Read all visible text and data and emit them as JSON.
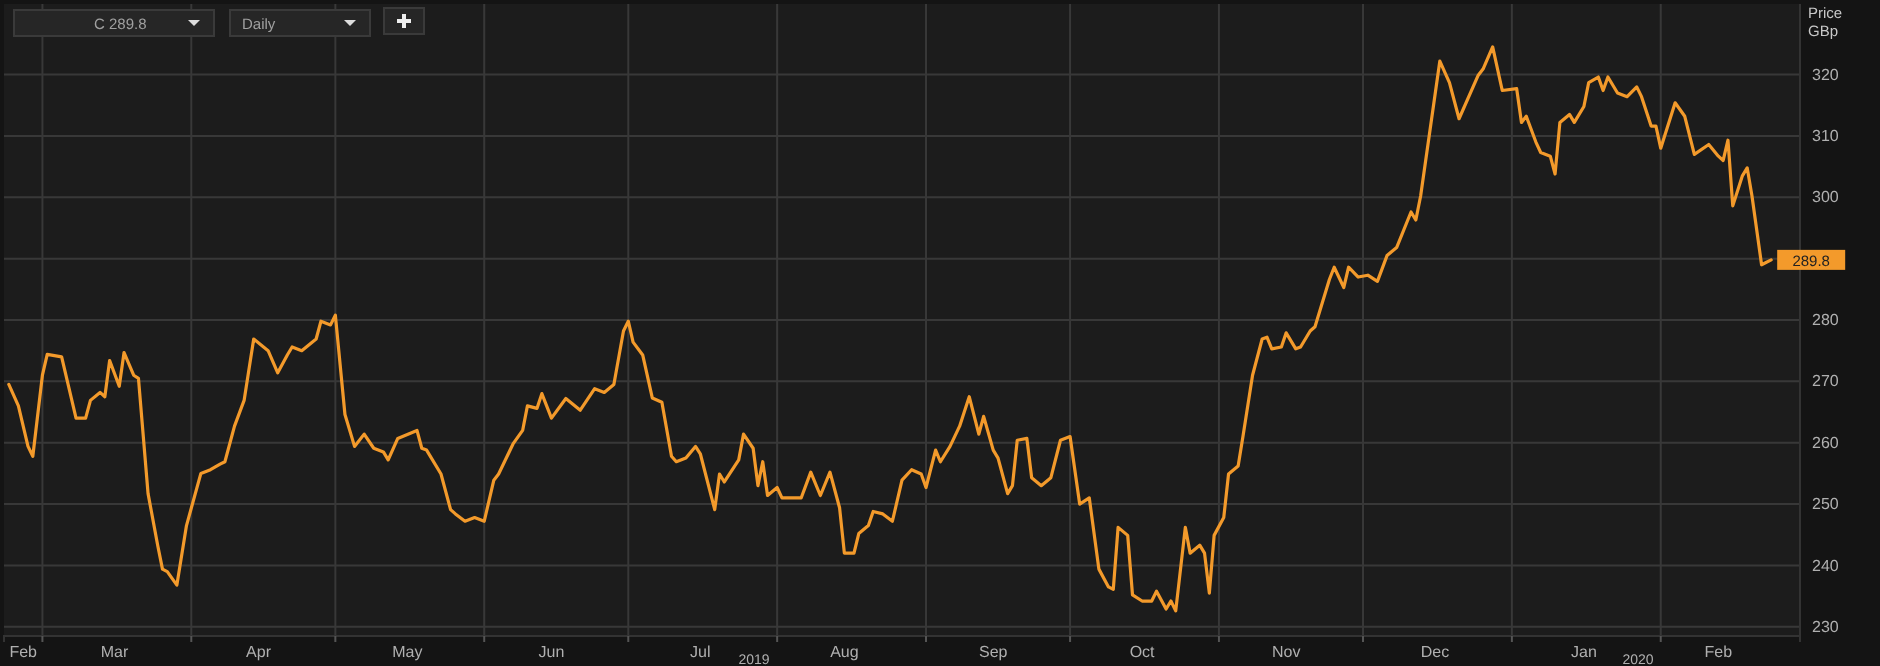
{
  "chart_data": {
    "type": "line",
    "ylabel": "Price GBp",
    "xlim": [
      "2019-02-21",
      "2020-03-01"
    ],
    "ylim": [
      228.5,
      331.5
    ],
    "yticks": [
      230,
      240,
      250,
      260,
      270,
      280,
      {
        "value": 290,
        "label": null
      },
      300,
      310,
      320
    ],
    "xticks": [
      {
        "value": "2019-02-25",
        "label": "Feb"
      },
      {
        "value": "2019-03-01",
        "label": null
      },
      {
        "value": "2019-03-16",
        "label": "Mar"
      },
      {
        "value": "2019-04-01",
        "label": null
      },
      {
        "value": "2019-04-15",
        "label": "Apr"
      },
      {
        "value": "2019-05-01",
        "label": null
      },
      {
        "value": "2019-05-16",
        "label": "May"
      },
      {
        "value": "2019-06-01",
        "label": null
      },
      {
        "value": "2019-06-15",
        "label": "Jun"
      },
      {
        "value": "2019-07-01",
        "label": null
      },
      {
        "value": "2019-07-16",
        "label": "Jul"
      },
      {
        "value": "2019-08-01",
        "label": null
      },
      {
        "value": "2019-08-15",
        "label": "Aug"
      },
      {
        "value": "2019-09-01",
        "label": null
      },
      {
        "value": "2019-09-15",
        "label": "Sep"
      },
      {
        "value": "2019-10-01",
        "label": null
      },
      {
        "value": "2019-10-16",
        "label": "Oct"
      },
      {
        "value": "2019-11-01",
        "label": null
      },
      {
        "value": "2019-11-15",
        "label": "Nov"
      },
      {
        "value": "2019-12-01",
        "label": null
      },
      {
        "value": "2019-12-16",
        "label": "Dec"
      },
      {
        "value": "2020-01-01",
        "label": null
      },
      {
        "value": "2020-01-16",
        "label": "Jan"
      },
      {
        "value": "2020-02-01",
        "label": null
      },
      {
        "value": "2020-02-13",
        "label": "Feb"
      }
    ],
    "grid": true,
    "marker": "none",
    "line_style": "solid",
    "annotations": [
      "C 289.8",
      "Daily",
      "2019",
      "2020"
    ],
    "series": [
      {
        "color": "#f39a2b",
        "value_labels": [
          null,
          null,
          null,
          null,
          null,
          null,
          null,
          null,
          null,
          null,
          null,
          null,
          null,
          null,
          null,
          null,
          null,
          null,
          null,
          null,
          null,
          null,
          null,
          null,
          null,
          null,
          null,
          null,
          null,
          null,
          null,
          null,
          null,
          null,
          null,
          null,
          null,
          null,
          null,
          null,
          null,
          null,
          null,
          null,
          null,
          null,
          null,
          null,
          null,
          null,
          null,
          null,
          null,
          null,
          null,
          null,
          null,
          null,
          null,
          null,
          null,
          null,
          null,
          null,
          null,
          null,
          null,
          null,
          null,
          null,
          null,
          null,
          null,
          null,
          null,
          null,
          null,
          null,
          null,
          null,
          null,
          null,
          null,
          null,
          null,
          null,
          null,
          null,
          null,
          null,
          null,
          null,
          null,
          null,
          null,
          null,
          null,
          null,
          null,
          null,
          null,
          null,
          null,
          null,
          null,
          null,
          null,
          null,
          null,
          null,
          null,
          null,
          null,
          null,
          null,
          null,
          null,
          null,
          null,
          null,
          null,
          null,
          null,
          null,
          null,
          null,
          null,
          null,
          null,
          null,
          null,
          null,
          null,
          null,
          null,
          null,
          null,
          null,
          null,
          null,
          null,
          null,
          null,
          null,
          null,
          null,
          null,
          null,
          null,
          null,
          null,
          null,
          null,
          null,
          null,
          null,
          null,
          null,
          null,
          null,
          null,
          null,
          null,
          null,
          null,
          null,
          null,
          null,
          null,
          null,
          null,
          null,
          null,
          null,
          null,
          null,
          null,
          null,
          null,
          null,
          null,
          null,
          null,
          null,
          null,
          null,
          null,
          null,
          null,
          null,
          null,
          null,
          null,
          null,
          null,
          null,
          null,
          null,
          null,
          null,
          null,
          null,
          null,
          null,
          null,
          null,
          null,
          null,
          null,
          null,
          null,
          null,
          "289.8"
        ],
        "x": [
          "2019-02-22",
          "2019-02-24",
          "2019-02-26",
          "2019-02-27",
          "2019-03-01",
          "2019-03-02",
          "2019-03-05",
          "2019-03-08",
          "2019-03-10",
          "2019-03-11",
          "2019-03-13",
          "2019-03-14",
          "2019-03-15",
          "2019-03-17",
          "2019-03-18",
          "2019-03-20",
          "2019-03-21",
          "2019-03-23",
          "2019-03-25",
          "2019-03-26",
          "2019-03-27",
          "2019-03-29",
          "2019-03-31",
          "2019-04-03",
          "2019-04-05",
          "2019-04-07",
          "2019-04-08",
          "2019-04-10",
          "2019-04-12",
          "2019-04-14",
          "2019-04-17",
          "2019-04-19",
          "2019-04-21",
          "2019-04-22",
          "2019-04-24",
          "2019-04-27",
          "2019-04-28",
          "2019-04-30",
          "2019-05-01",
          "2019-05-03",
          "2019-05-05",
          "2019-05-07",
          "2019-05-09",
          "2019-05-11",
          "2019-05-12",
          "2019-05-14",
          "2019-05-18",
          "2019-05-19",
          "2019-05-20",
          "2019-05-23",
          "2019-05-25",
          "2019-05-26",
          "2019-05-28",
          "2019-05-30",
          "2019-06-01",
          "2019-06-03",
          "2019-06-04",
          "2019-06-07",
          "2019-06-09",
          "2019-06-10",
          "2019-06-12",
          "2019-06-13",
          "2019-06-15",
          "2019-06-18",
          "2019-06-21",
          "2019-06-24",
          "2019-06-26",
          "2019-06-28",
          "2019-06-30",
          "2019-07-01",
          "2019-07-02",
          "2019-07-04",
          "2019-07-06",
          "2019-07-08",
          "2019-07-10",
          "2019-07-11",
          "2019-07-13",
          "2019-07-15",
          "2019-07-16",
          "2019-07-19",
          "2019-07-20",
          "2019-07-21",
          "2019-07-24",
          "2019-07-25",
          "2019-07-27",
          "2019-07-28",
          "2019-07-29",
          "2019-07-30",
          "2019-08-01",
          "2019-08-02",
          "2019-08-06",
          "2019-08-08",
          "2019-08-10",
          "2019-08-12",
          "2019-08-14",
          "2019-08-15",
          "2019-08-17",
          "2019-08-18",
          "2019-08-20",
          "2019-08-21",
          "2019-08-23",
          "2019-08-25",
          "2019-08-27",
          "2019-08-29",
          "2019-08-31",
          "2019-09-01",
          "2019-09-03",
          "2019-09-04",
          "2019-09-06",
          "2019-09-08",
          "2019-09-10",
          "2019-09-12",
          "2019-09-13",
          "2019-09-15",
          "2019-09-16",
          "2019-09-18",
          "2019-09-19",
          "2019-09-20",
          "2019-09-22",
          "2019-09-23",
          "2019-09-25",
          "2019-09-27",
          "2019-09-29",
          "2019-10-01",
          "2019-10-03",
          "2019-10-05",
          "2019-10-07",
          "2019-10-09",
          "2019-10-10",
          "2019-10-11",
          "2019-10-13",
          "2019-10-14",
          "2019-10-16",
          "2019-10-18",
          "2019-10-19",
          "2019-10-21",
          "2019-10-22",
          "2019-10-23",
          "2019-10-25",
          "2019-10-26",
          "2019-10-28",
          "2019-10-29",
          "2019-10-30",
          "2019-10-31",
          "2019-11-02",
          "2019-11-03",
          "2019-11-05",
          "2019-11-06",
          "2019-11-08",
          "2019-11-10",
          "2019-11-11",
          "2019-11-12",
          "2019-11-14",
          "2019-11-15",
          "2019-11-17",
          "2019-11-18",
          "2019-11-20",
          "2019-11-21",
          "2019-11-24",
          "2019-11-25",
          "2019-11-27",
          "2019-11-28",
          "2019-11-30",
          "2019-12-02",
          "2019-12-04",
          "2019-12-06",
          "2019-12-08",
          "2019-12-11",
          "2019-12-12",
          "2019-12-13",
          "2019-12-15",
          "2019-12-17",
          "2019-12-19",
          "2019-12-21",
          "2019-12-25",
          "2019-12-26",
          "2019-12-28",
          "2019-12-30",
          "2020-01-02",
          "2020-01-03",
          "2020-01-04",
          "2020-01-06",
          "2020-01-07",
          "2020-01-09",
          "2020-01-10",
          "2020-01-11",
          "2020-01-13",
          "2020-01-14",
          "2020-01-16",
          "2020-01-17",
          "2020-01-19",
          "2020-01-20",
          "2020-01-21",
          "2020-01-23",
          "2020-01-25",
          "2020-01-27",
          "2020-01-28",
          "2020-01-30",
          "2020-01-31",
          "2020-02-01",
          "2020-02-04",
          "2020-02-06",
          "2020-02-08",
          "2020-02-11",
          "2020-02-13",
          "2020-02-14",
          "2020-02-15",
          "2020-02-16",
          "2020-02-18",
          "2020-02-19",
          "2020-02-20",
          "2020-02-22",
          "2020-02-24"
        ],
        "values": [
          269.5,
          266,
          259.4,
          257.8,
          271,
          274.4,
          274,
          264,
          264,
          266.9,
          268.2,
          267.5,
          273.4,
          269.2,
          274.7,
          271,
          270.5,
          251.7,
          243.3,
          239.4,
          239,
          236.8,
          246.5,
          255,
          255.6,
          256.5,
          256.9,
          262.7,
          266.9,
          276.9,
          275,
          271.4,
          274.3,
          275.6,
          275,
          276.9,
          279.8,
          279.2,
          280.8,
          264.6,
          259.4,
          261.4,
          259.1,
          258.5,
          257.2,
          260.7,
          262,
          259.1,
          258.8,
          254.9,
          249.1,
          248.4,
          247.2,
          247.8,
          247.2,
          253.9,
          254.9,
          259.8,
          262,
          266,
          265.6,
          268,
          264,
          267.2,
          265.3,
          268.8,
          268.2,
          269.5,
          278.2,
          279.8,
          276.4,
          274.3,
          267.3,
          266.6,
          257.8,
          256.9,
          257.5,
          259.4,
          258.2,
          249.1,
          254.9,
          253.6,
          257.2,
          261.4,
          259.1,
          253,
          256.9,
          251.4,
          252.7,
          251,
          251,
          255.2,
          251.4,
          255.2,
          249.4,
          242,
          242,
          245.2,
          246.5,
          248.8,
          248.4,
          247.2,
          253.9,
          255.6,
          254.9,
          252.7,
          258.8,
          256.9,
          259.4,
          262.7,
          267.5,
          261.4,
          264.3,
          258.8,
          257.5,
          251.7,
          253,
          260.4,
          260.7,
          254.3,
          253,
          254.3,
          260.4,
          261,
          250,
          251,
          239.4,
          236.5,
          236.1,
          246.2,
          244.9,
          235.2,
          234.2,
          234.2,
          235.8,
          232.9,
          234.2,
          232.6,
          246.2,
          242,
          243.3,
          242,
          235.5,
          244.9,
          247.8,
          254.9,
          256.2,
          261,
          271,
          276.9,
          277.2,
          275.3,
          275.6,
          277.9,
          275.3,
          275.6,
          278.2,
          278.9,
          286.6,
          288.6,
          285.3,
          288.6,
          287,
          287.3,
          286.3,
          290.5,
          291.8,
          297.6,
          296.3,
          300.2,
          311.2,
          322.2,
          318.7,
          312.8,
          319.9,
          320.9,
          324.5,
          317.4,
          317.7,
          312.2,
          313.2,
          309,
          307.3,
          306.7,
          303.8,
          312.2,
          313.5,
          312.2,
          314.8,
          318.7,
          319.6,
          317.4,
          319.6,
          317,
          316.4,
          318,
          316.4,
          311.6,
          311.6,
          308,
          315.4,
          313.2,
          307,
          308.6,
          306.7,
          306,
          309.3,
          298.6,
          303.5,
          304.8,
          300.2,
          289,
          289.8
        ]
      }
    ]
  }
}
